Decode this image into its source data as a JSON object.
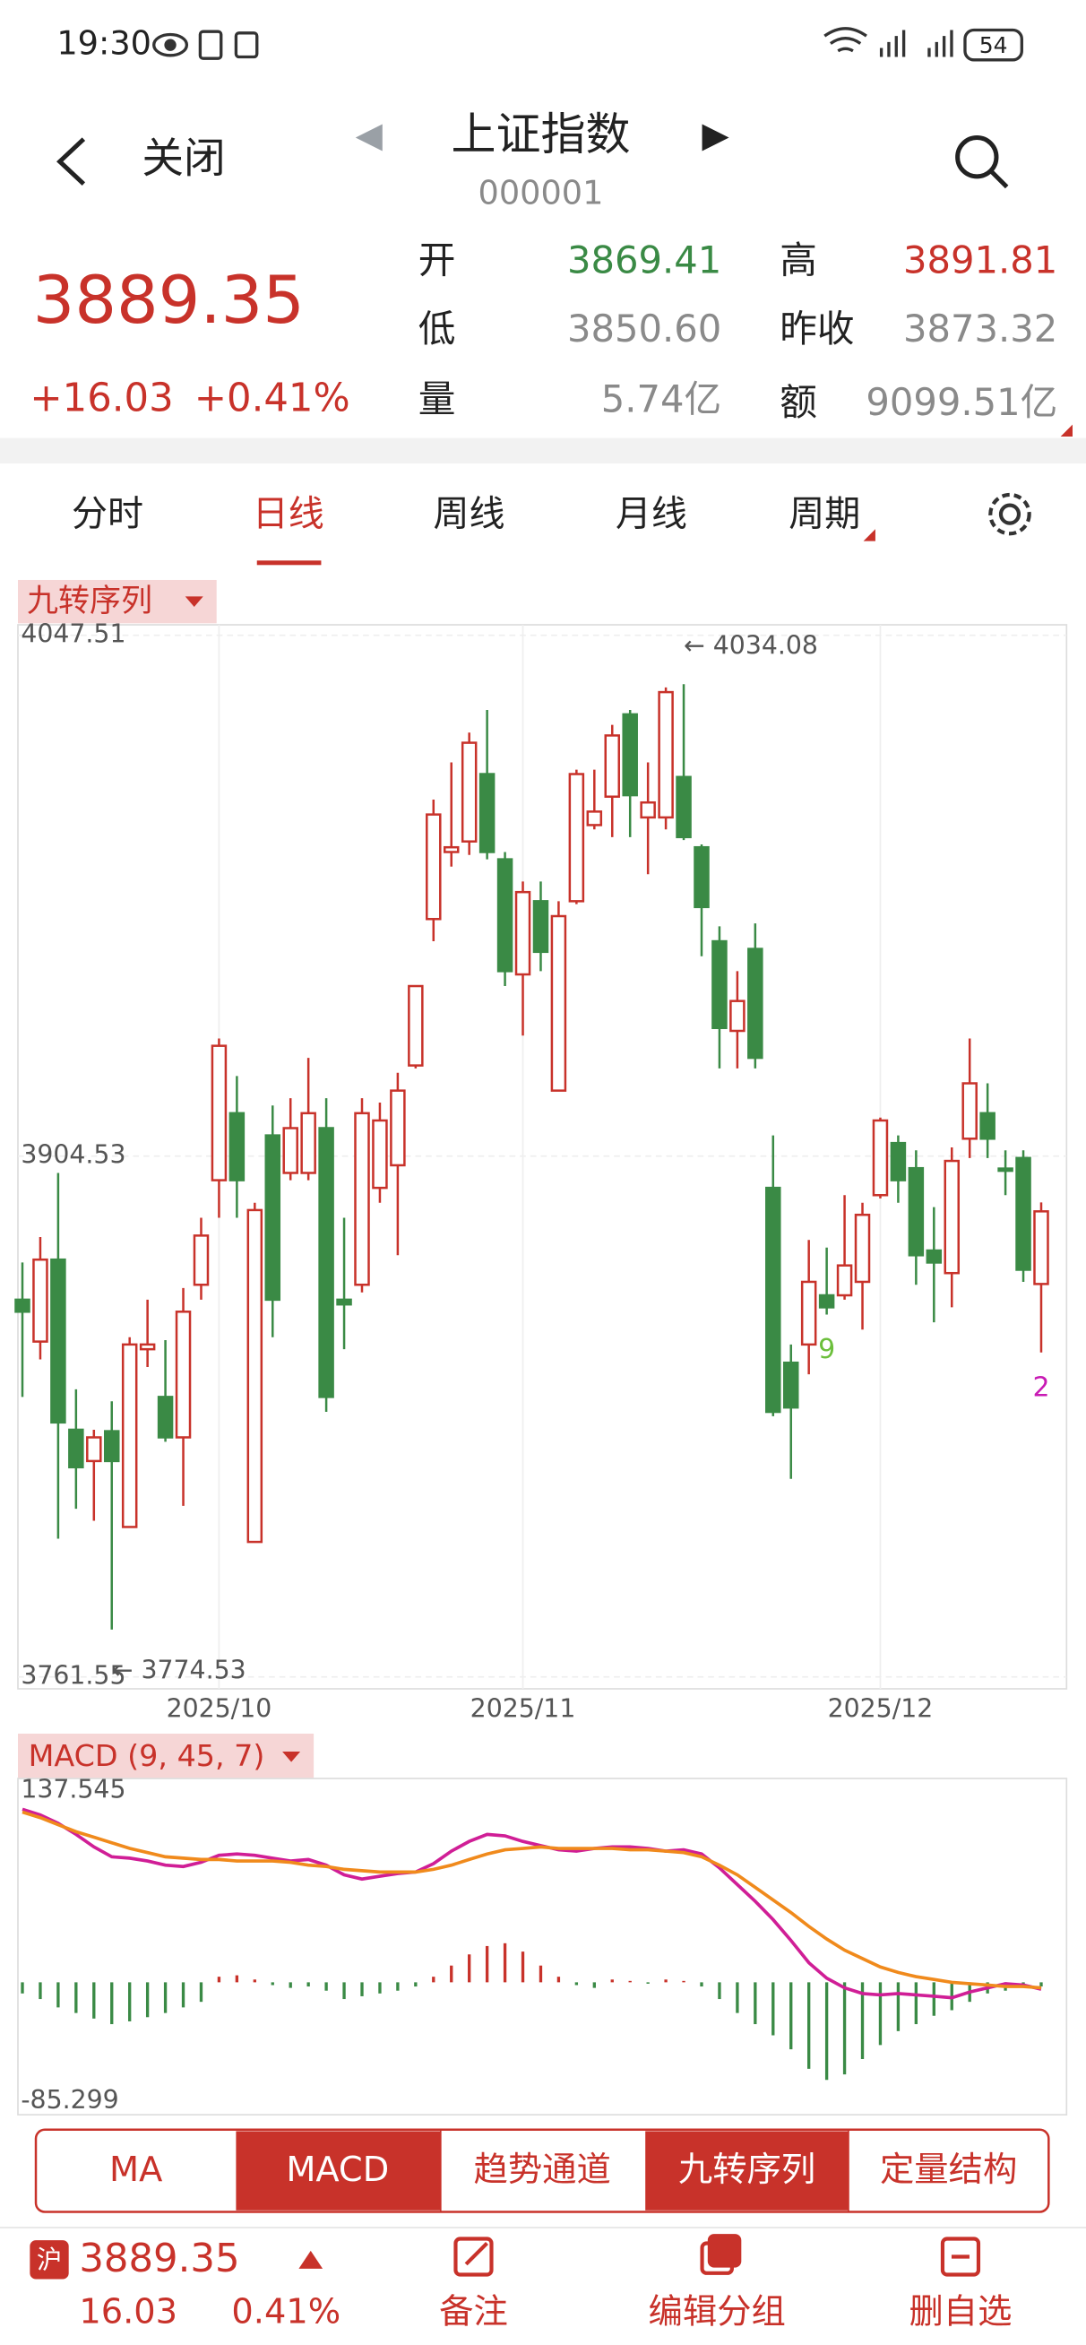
{
  "status_bar": {
    "time": "19:30",
    "battery": "54"
  },
  "header": {
    "back": "关闭",
    "title": "上证指数",
    "code": "000001"
  },
  "quote": {
    "price": "3889.35",
    "change": "+16.03",
    "change_pct": "+0.41%",
    "fields": [
      {
        "label": "开",
        "value": "3869.41"
      },
      {
        "label": "高",
        "value": "3891.81"
      },
      {
        "label": "低",
        "value": "3850.60"
      },
      {
        "label": "昨收",
        "value": "3873.32"
      },
      {
        "label": "量",
        "value": "5.74亿"
      },
      {
        "label": "额",
        "value": "9099.51亿"
      }
    ]
  },
  "tabs": [
    "分时",
    "日线",
    "周线",
    "月线",
    "周期"
  ],
  "indicator_selector": "九转序列",
  "macd_selector": "MACD (9, 45, 7)",
  "indicator_buttons": [
    "MA",
    "MACD",
    "趋势通道",
    "九转序列",
    "定量结构"
  ],
  "footer": {
    "market": "沪",
    "price": "3889.35",
    "change": "16.03",
    "change_pct": "0.41%",
    "actions": [
      "备注",
      "编辑分组",
      "删自选"
    ]
  },
  "chart_data": [
    {
      "type": "candlestick",
      "up_color": "#c8322a",
      "down_color": "#3a8a45",
      "categories": [
        null,
        null,
        null,
        null,
        null,
        null,
        null,
        null,
        null,
        null,
        null,
        "2025/10",
        null,
        null,
        null,
        null,
        null,
        null,
        null,
        null,
        null,
        null,
        null,
        null,
        null,
        null,
        null,
        null,
        "2025/11",
        null,
        null,
        null,
        null,
        null,
        null,
        null,
        null,
        null,
        null,
        null,
        null,
        null,
        null,
        null,
        null,
        null,
        null,
        null,
        "2025/12",
        null,
        null,
        null,
        null,
        null,
        null,
        null,
        null,
        null
      ],
      "open": [
        3865.1,
        3853.6,
        3876.1,
        3829.4,
        3820.8,
        3829,
        3802.7,
        3851.5,
        3838.4,
        3827.3,
        3869.2,
        3897.9,
        3916.3,
        3798.6,
        3910.2,
        3899.9,
        3899.9,
        3912.2,
        3865.1,
        3869.2,
        3895.8,
        3902,
        3929.4,
        3969.6,
        3988,
        3990.9,
        4009.4,
        3986,
        3954.4,
        3974.5,
        3922.5,
        3974.5,
        3995.4,
        4003.2,
        4025.8,
        3997.5,
        3997.5,
        4008.6,
        3989.3,
        3963.5,
        3938.9,
        3961.4,
        3895.8,
        3847.8,
        3852.8,
        3866.3,
        3866.3,
        3870,
        3893.8,
        3908.1,
        3901.2,
        3878.6,
        3872.4,
        3909.3,
        3916.3,
        3901.1,
        3904,
        3869.41
      ],
      "high": [
        3875.3,
        3882.3,
        3899.9,
        3840.5,
        3829.4,
        3837.2,
        3854.8,
        3865.1,
        3854,
        3868.3,
        3887.6,
        3936.8,
        3926.5,
        3891.7,
        3918.4,
        3920.4,
        3931.5,
        3920.4,
        3887.6,
        3920.4,
        3919.2,
        3927.4,
        3951.2,
        4002.4,
        4012.6,
        4020.8,
        4027,
        3988,
        3979.9,
        3979.9,
        3974.5,
        4010.6,
        4010.6,
        4022.9,
        4027,
        4012.6,
        4033.2,
        4034.08,
        3990.1,
        3967.6,
        3955.3,
        3968.4,
        3910.2,
        3852.8,
        3881.5,
        3879.4,
        3893.8,
        3891.7,
        3915.1,
        3910.2,
        3906.1,
        3890.5,
        3906.9,
        3936.8,
        3924.5,
        3906.1,
        3906.1,
        3891.81
      ],
      "low": [
        3838.4,
        3848.7,
        3799.5,
        3807.7,
        3804.4,
        3774.53,
        3802.7,
        3846.6,
        3826.1,
        3808.5,
        3865.1,
        3887.6,
        3887.6,
        3798.6,
        3854.8,
        3897.9,
        3897.9,
        3834.3,
        3851.5,
        3867.1,
        3891.7,
        3877.3,
        3928.6,
        3963.5,
        3984,
        3987.2,
        3986,
        3951.2,
        3937.6,
        3955.3,
        3922.5,
        3973.7,
        3994.2,
        3992.1,
        3992.1,
        3981.9,
        3994.2,
        3991.3,
        3959.4,
        3928.6,
        3928.6,
        3928.6,
        3833.1,
        3815.9,
        3844.6,
        3861,
        3865.1,
        3856.9,
        3892.9,
        3891.7,
        3869.2,
        3858.9,
        3863,
        3904,
        3904,
        3893.8,
        3870,
        3850.6
      ],
      "close": [
        3861.8,
        3876.1,
        3831.4,
        3819.1,
        3827.3,
        3820.8,
        3852.8,
        3852.8,
        3827.3,
        3861.8,
        3882.7,
        3934.8,
        3897.9,
        3889.7,
        3865.1,
        3912.2,
        3916.3,
        3838.4,
        3863.8,
        3916.3,
        3914.3,
        3922.5,
        3951.2,
        3998.3,
        3989.3,
        4018,
        3988,
        3955.3,
        3977,
        3960.6,
        3970.4,
        4009.4,
        3999.1,
        4020,
        4003.6,
        4001.6,
        4031.9,
        3992.1,
        3972.9,
        3939.7,
        3947.1,
        3931.5,
        3834.3,
        3835.5,
        3870,
        3863,
        3874.5,
        3888.4,
        3914.3,
        3897.9,
        3877.3,
        3875.3,
        3903.2,
        3924.5,
        3909.3,
        3900.7,
        3873.32,
        3889.35
      ],
      "sequence_labels": [
        null,
        null,
        null,
        null,
        null,
        null,
        null,
        null,
        null,
        null,
        null,
        null,
        null,
        null,
        null,
        null,
        null,
        null,
        null,
        null,
        null,
        null,
        null,
        null,
        null,
        null,
        null,
        null,
        null,
        null,
        null,
        null,
        null,
        null,
        null,
        null,
        null,
        null,
        null,
        null,
        null,
        null,
        null,
        null,
        null,
        9,
        null,
        null,
        null,
        null,
        null,
        null,
        null,
        null,
        null,
        null,
        null,
        2
      ],
      "sequence_colors": [
        null,
        null,
        null,
        null,
        null,
        null,
        null,
        null,
        null,
        null,
        null,
        null,
        null,
        null,
        null,
        null,
        null,
        null,
        null,
        null,
        null,
        null,
        null,
        null,
        null,
        null,
        null,
        null,
        null,
        null,
        null,
        null,
        null,
        null,
        null,
        null,
        null,
        null,
        null,
        null,
        null,
        null,
        null,
        null,
        null,
        "#6cbf3c",
        null,
        null,
        null,
        null,
        null,
        null,
        null,
        null,
        null,
        null,
        null,
        "#c81ab4"
      ],
      "high_label": "← 4034.08",
      "low_label": "← 3774.53",
      "ylim": [
        3761.55,
        4047.51
      ],
      "yticks": [
        3761.55,
        3904.53,
        4047.51
      ],
      "grid": true
    },
    {
      "type": "macd",
      "up_color": "#c8322a",
      "down_color": "#3a8a45",
      "series": [
        {
          "color": "#d01e96",
          "values": [
            124,
            120,
            114,
            106,
            97,
            90,
            89,
            87,
            84,
            83,
            86,
            91,
            92,
            91,
            89,
            87,
            88,
            84,
            77,
            74,
            76,
            78,
            79,
            85,
            94,
            101,
            106,
            105,
            101,
            98,
            95,
            94,
            96,
            97,
            97,
            96,
            94,
            95,
            92,
            82,
            70,
            58,
            45,
            30,
            14,
            3,
            -4,
            -8,
            -9,
            -8,
            -9,
            -10,
            -11,
            -7,
            -4,
            -1,
            -2,
            -5
          ]
        },
        {
          "color": "#f08a1c",
          "values": [
            122,
            118,
            113,
            108,
            104,
            100,
            96,
            93,
            90,
            89,
            88,
            88,
            87,
            87,
            87,
            86,
            84,
            83,
            81,
            80,
            79,
            79,
            79,
            81,
            84,
            88,
            92,
            95,
            96,
            97,
            96,
            96,
            96,
            96,
            95,
            95,
            94,
            93,
            90,
            84,
            77,
            68,
            59,
            50,
            40,
            31,
            23,
            17,
            11,
            7,
            4,
            2,
            0,
            -1,
            -2,
            -3,
            -3,
            -4
          ]
        }
      ],
      "histogram": [
        -8,
        -12,
        -18,
        -22,
        -26,
        -30,
        -28,
        -25,
        -22,
        -18,
        -14,
        4,
        5,
        2,
        -2,
        -4,
        -3,
        -6,
        -12,
        -10,
        -8,
        -6,
        -3,
        4,
        12,
        20,
        26,
        28,
        22,
        12,
        4,
        -2,
        -4,
        2,
        1,
        -1,
        2,
        1,
        -3,
        -12,
        -22,
        -30,
        -38,
        -48,
        -62,
        -70,
        -66,
        -55,
        -45,
        -35,
        -30,
        -24,
        -20,
        -14,
        -8,
        -6,
        -4,
        -3
      ],
      "ylim": [
        -85.299,
        137.545
      ],
      "yticks": [
        -85.299,
        137.545
      ]
    }
  ]
}
